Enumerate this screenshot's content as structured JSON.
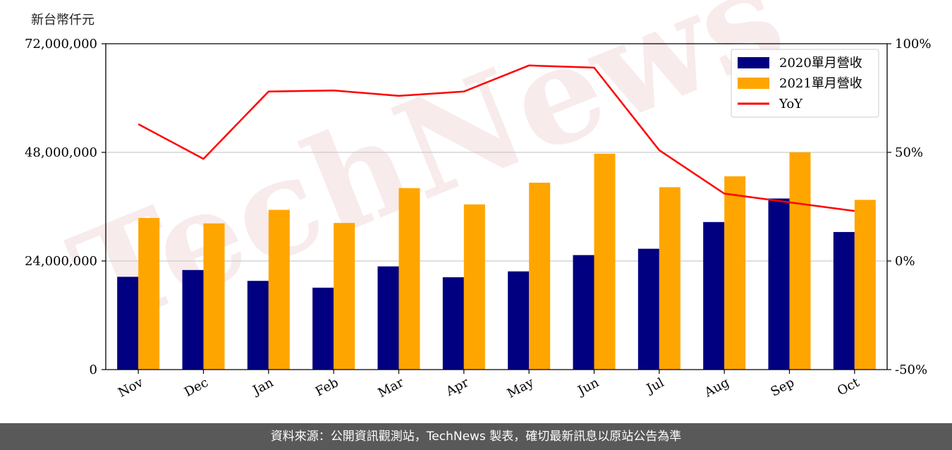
{
  "unit_label": "新台幣仟元",
  "watermark": "TechNews",
  "footer": "資料來源：公開資訊觀測站，TechNews 製表，確切最新訊息以原站公告為準",
  "colors": {
    "bar2020": "#000080",
    "bar2021": "#FFA500",
    "yoy": "#FF0000",
    "grid": "#cccccc"
  },
  "chart_data": {
    "type": "bar",
    "categories": [
      "Nov",
      "Dec",
      "Jan",
      "Feb",
      "Mar",
      "Apr",
      "May",
      "Jun",
      "Jul",
      "Aug",
      "Sep",
      "Oct"
    ],
    "series": [
      {
        "name": "2020單月營收",
        "type": "bar",
        "axis": "left",
        "values": [
          20500000,
          22000000,
          19600000,
          18100000,
          22800000,
          20400000,
          21700000,
          25300000,
          26700000,
          32600000,
          37800000,
          30400000
        ]
      },
      {
        "name": "2021單月營收",
        "type": "bar",
        "axis": "left",
        "values": [
          33500000,
          32300000,
          35300000,
          32400000,
          40100000,
          36500000,
          41300000,
          47700000,
          40300000,
          42700000,
          48000000,
          37500000
        ]
      },
      {
        "name": "YoY",
        "type": "line",
        "axis": "right",
        "values": [
          63,
          47,
          78,
          78.5,
          76,
          78,
          90,
          89,
          51,
          31,
          27,
          23
        ]
      }
    ],
    "y_left": {
      "min": 0,
      "max": 72000000,
      "ticks": [
        0,
        24000000,
        48000000,
        72000000
      ],
      "tick_labels": [
        "0",
        "24,000,000",
        "48,000,000",
        "72,000,000"
      ]
    },
    "y_right": {
      "min": -50,
      "max": 100,
      "ticks": [
        -50,
        0,
        50,
        100
      ],
      "tick_labels": [
        "-50%",
        "0%",
        "50%",
        "100%"
      ]
    },
    "grid": "horizontal",
    "legend": "top-right",
    "title": "",
    "xlabel": "",
    "ylabel": "新台幣仟元"
  }
}
